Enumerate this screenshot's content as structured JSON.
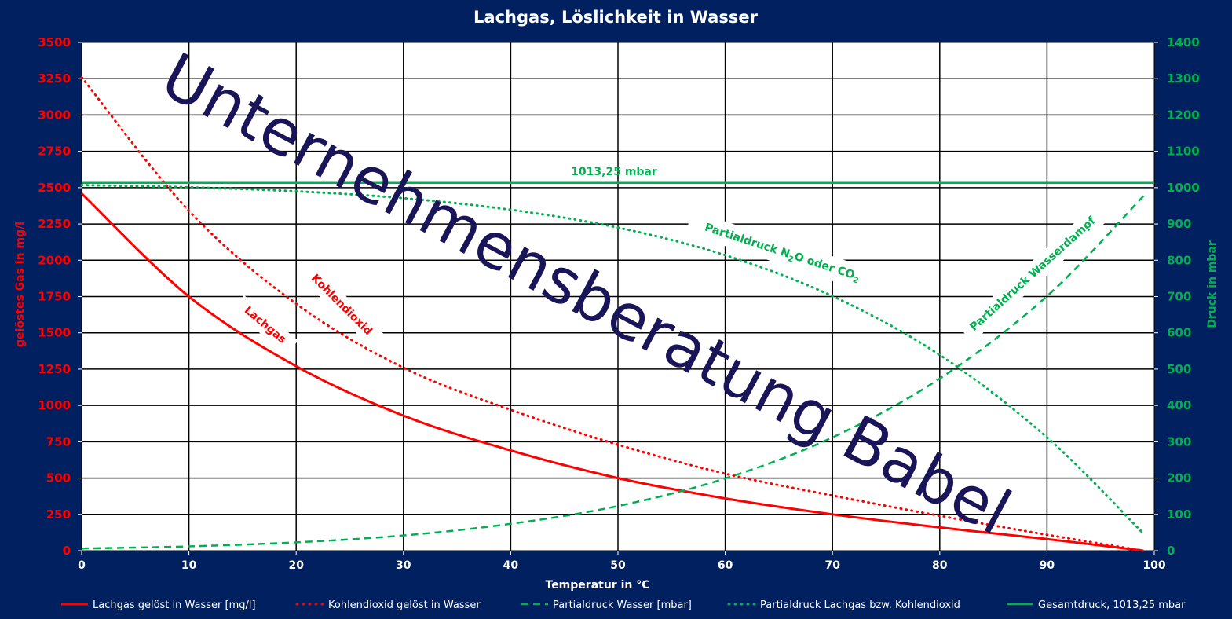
{
  "chart_data": {
    "type": "line",
    "title": "Lachgas, Löslichkeit in Wasser",
    "xlabel": "Temperatur in °C",
    "ylabel_left": "gelöstes Gas in mg/l",
    "ylabel_right": "Druck in mbar",
    "xlim": [
      0,
      100
    ],
    "ylim_left": [
      0,
      3500
    ],
    "ylim_right": [
      0,
      1400
    ],
    "x_ticks": [
      0,
      10,
      20,
      30,
      40,
      50,
      60,
      70,
      80,
      90,
      100
    ],
    "y_left_ticks": [
      0,
      250,
      500,
      750,
      1000,
      1250,
      1500,
      1750,
      2000,
      2250,
      2500,
      2750,
      3000,
      3250,
      3500
    ],
    "y_right_ticks": [
      0,
      100,
      200,
      300,
      400,
      500,
      600,
      700,
      800,
      900,
      1000,
      1100,
      1200,
      1300,
      1400
    ],
    "grid": true,
    "x": [
      0,
      10,
      20,
      30,
      40,
      50,
      60,
      70,
      80,
      90,
      99
    ],
    "series": [
      {
        "name": "Lachgas gelöst in Wasser [mg/l]",
        "axis": "left",
        "color": "#ff0000",
        "style": "solid",
        "values": [
          2460,
          1750,
          1270,
          930,
          690,
          500,
          360,
          250,
          160,
          80,
          0
        ]
      },
      {
        "name": "Kohlendioxid gelöst in Wasser",
        "axis": "left",
        "color": "#ff0000",
        "style": "dotted",
        "values": [
          3260,
          2340,
          1700,
          1260,
          970,
          730,
          530,
          380,
          240,
          110,
          0
        ]
      },
      {
        "name": "Partialdruck Wasser [mbar]",
        "axis": "right",
        "color": "#00b050",
        "style": "dashed",
        "values": [
          6,
          12,
          23,
          42,
          74,
          123,
          199,
          312,
          474,
          701,
          977
        ]
      },
      {
        "name": "Partialdruck Lachgas bzw. Kohlendioxid",
        "axis": "right",
        "color": "#00b050",
        "style": "dotted",
        "values": [
          1007,
          1001,
          990,
          971,
          939,
          890,
          814,
          701,
          539,
          312,
          47
        ]
      },
      {
        "name": "Gesamtdruck, 1013,25 mbar",
        "axis": "right",
        "color": "#00b050",
        "style": "solid",
        "values": [
          1013.25,
          1013.25,
          1013.25,
          1013.25,
          1013.25,
          1013.25,
          1013.25,
          1013.25,
          1013.25,
          1013.25,
          1013.25
        ]
      }
    ],
    "annotations": [
      {
        "text": "1013,25 mbar",
        "color": "#00b050"
      },
      {
        "text": "Partialdruck N",
        "sub": "2",
        "rest": "O oder CO",
        "sub2": "2",
        "color": "#00b050"
      },
      {
        "text": "Partialdruck Wasserdampf",
        "color": "#00b050"
      },
      {
        "text": "Kohlendioxid",
        "color": "#ff0000"
      },
      {
        "text": "Lachgas",
        "color": "#ff0000"
      }
    ],
    "watermark": "Unternehmensberatung Babel",
    "legend_position": "bottom"
  }
}
